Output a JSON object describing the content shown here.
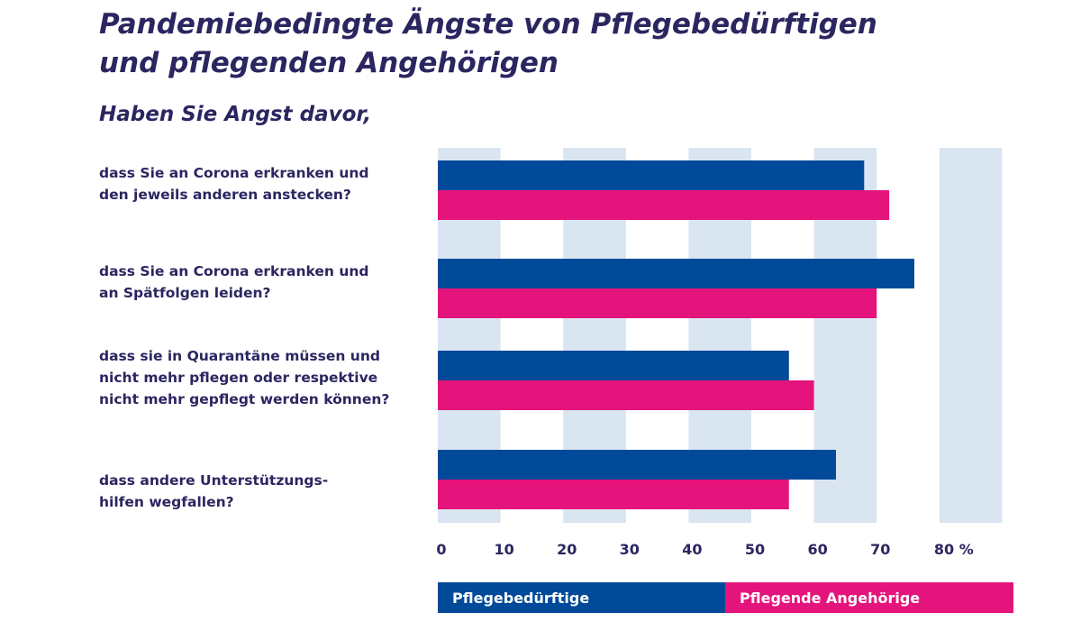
{
  "chart_data": {
    "type": "bar",
    "orientation": "horizontal",
    "title_lines": [
      "Pandemiebedingte Ängste von Pflegebedürftigen",
      "und pflegenden Angehörigen"
    ],
    "subtitle": "Haben Sie Angst davor,",
    "categories": [
      [
        "dass Sie an Corona erkranken und",
        "den jeweils anderen anstecken?"
      ],
      [
        "dass Sie an Corona erkranken und",
        "an Spätfolgen leiden?"
      ],
      [
        "dass sie in Quarantäne müssen und",
        "nicht mehr pflegen oder respektive",
        "nicht mehr gepflegt werden können?"
      ],
      [
        "dass andere Unterstützungs-",
        "hilfen wegfallen?"
      ]
    ],
    "series": [
      {
        "name": "Pflegebedürftige",
        "color": "#004a99",
        "values": [
          68,
          76,
          56,
          63.5
        ]
      },
      {
        "name": "Pflegende Angehörige",
        "color": "#e5147c",
        "values": [
          72,
          70,
          60,
          56
        ]
      }
    ],
    "xlim": [
      0,
      90
    ],
    "xticks": [
      "0",
      "10",
      "20",
      "30",
      "40",
      "50",
      "60",
      "70",
      "80 %"
    ],
    "grid_band_color": "#d9e5f1",
    "legend_position": "bottom"
  }
}
